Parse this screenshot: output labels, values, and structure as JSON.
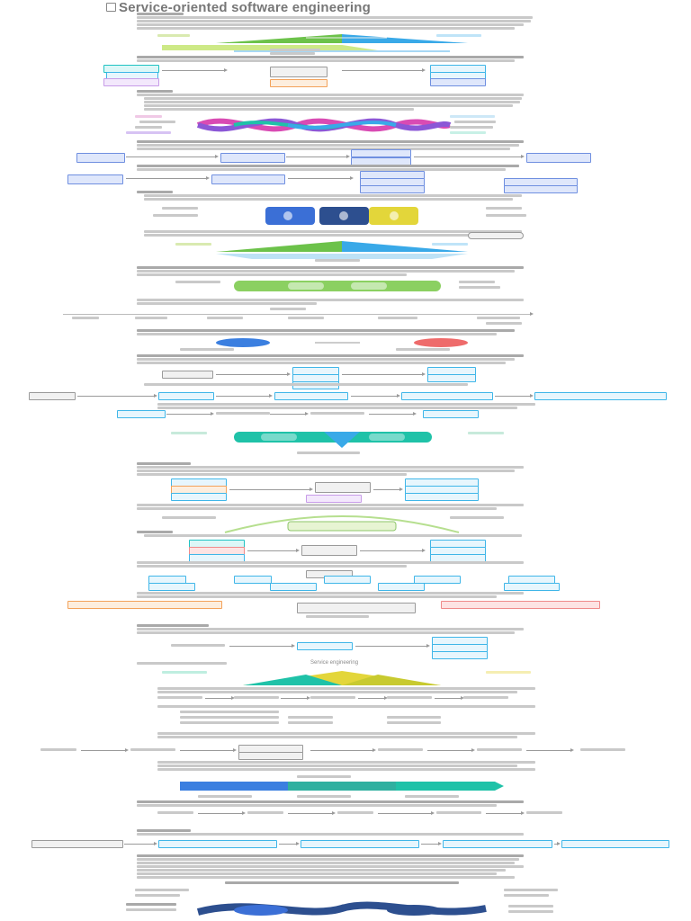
{
  "document": {
    "title": "Service-oriented software engineering",
    "sections": {
      "service_engineering": "Service engineering"
    },
    "colors": {
      "green": "#6cc24a",
      "blue": "#39a9e8",
      "cyan": "#3fb6e8",
      "navy": "#2d4f8f",
      "magenta": "#d94bb3",
      "purple": "#8b57d6",
      "orange": "#f3a25a",
      "red": "#ee6b6b",
      "teal": "#1fc2a8",
      "yellow": "#e3d63a"
    }
  }
}
